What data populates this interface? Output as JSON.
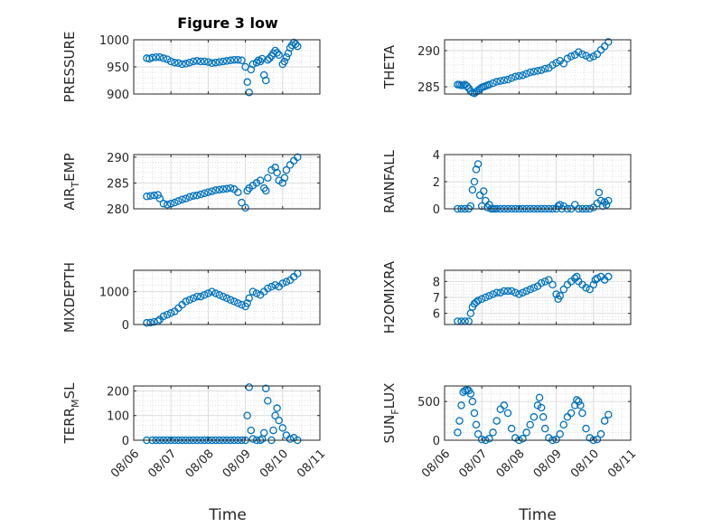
{
  "figure_title": "Figure 3 low",
  "x_axis_label": "Time",
  "x_tick_labels": [
    "08/06",
    "08/07",
    "08/08",
    "08/09",
    "08/10",
    "08/11"
  ],
  "colors": {
    "marker": "#0072BD",
    "axis": "#262626",
    "grid": "#d9d9d9"
  },
  "chart_data": [
    {
      "type": "scatter",
      "ylabel": "PRESSURE",
      "xlim": [
        0,
        5
      ],
      "ylim": [
        900,
        1000
      ],
      "yticks": [
        900,
        950,
        1000
      ],
      "title": "Figure 3 low",
      "x": [
        0.35,
        0.42,
        0.5,
        0.6,
        0.7,
        0.8,
        0.9,
        1.0,
        1.1,
        1.2,
        1.3,
        1.4,
        1.5,
        1.6,
        1.7,
        1.8,
        1.9,
        2.0,
        2.1,
        2.2,
        2.3,
        2.4,
        2.5,
        2.6,
        2.7,
        2.8,
        2.9,
        3.0,
        3.05,
        3.1,
        3.15,
        3.2,
        3.3,
        3.35,
        3.4,
        3.45,
        3.5,
        3.55,
        3.6,
        3.65,
        3.7,
        3.75,
        3.8,
        3.85,
        3.9,
        4.0,
        4.05,
        4.1,
        4.15,
        4.2,
        4.25,
        4.3,
        4.35,
        4.4
      ],
      "y": [
        966,
        965,
        967,
        968,
        968,
        966,
        964,
        960,
        958,
        957,
        955,
        956,
        958,
        960,
        961,
        960,
        960,
        959,
        957,
        958,
        959,
        960,
        961,
        962,
        963,
        963,
        962,
        950,
        922,
        903,
        945,
        955,
        958,
        962,
        960,
        965,
        935,
        925,
        963,
        966,
        970,
        975,
        980,
        976,
        972,
        955,
        960,
        968,
        975,
        985,
        990,
        995,
        992,
        988
      ]
    },
    {
      "type": "scatter",
      "ylabel": "THETA",
      "xlim": [
        0,
        5
      ],
      "ylim": [
        284,
        291.5
      ],
      "yticks": [
        285,
        290
      ],
      "x": [
        0.35,
        0.4,
        0.45,
        0.5,
        0.55,
        0.6,
        0.65,
        0.7,
        0.75,
        0.8,
        0.85,
        0.9,
        0.95,
        1.0,
        1.05,
        1.1,
        1.15,
        1.2,
        1.3,
        1.4,
        1.5,
        1.6,
        1.7,
        1.8,
        1.9,
        2.0,
        2.1,
        2.2,
        2.3,
        2.4,
        2.5,
        2.6,
        2.7,
        2.8,
        2.9,
        3.0,
        3.1,
        3.2,
        3.3,
        3.4,
        3.5,
        3.6,
        3.7,
        3.8,
        3.9,
        4.0,
        4.1,
        4.2,
        4.3,
        4.4
      ],
      "y": [
        285.3,
        285.3,
        285.2,
        285.2,
        285.3,
        285.1,
        284.8,
        284.4,
        284.2,
        284.1,
        284.3,
        284.5,
        284.7,
        284.9,
        285.0,
        285.1,
        285.2,
        285.3,
        285.5,
        285.7,
        285.8,
        285.9,
        286.0,
        286.2,
        286.4,
        286.5,
        286.6,
        286.8,
        287.0,
        287.1,
        287.2,
        287.3,
        287.5,
        287.6,
        288.0,
        288.3,
        288.6,
        288.2,
        288.9,
        289.2,
        289.4,
        289.8,
        289.5,
        289.3,
        289.0,
        289.2,
        289.5,
        290.1,
        290.6,
        291.2
      ]
    },
    {
      "type": "scatter",
      "ylabel": "AIR_TEMP",
      "ylabel_parts": {
        "main": "AIR",
        "sub": "T",
        "rest": "EMP"
      },
      "xlim": [
        0,
        5
      ],
      "ylim": [
        280,
        290.5
      ],
      "yticks": [
        280,
        285,
        290
      ],
      "x": [
        0.35,
        0.45,
        0.55,
        0.65,
        0.7,
        0.8,
        0.9,
        1.0,
        1.1,
        1.2,
        1.3,
        1.4,
        1.5,
        1.6,
        1.7,
        1.8,
        1.9,
        2.0,
        2.1,
        2.2,
        2.3,
        2.4,
        2.5,
        2.6,
        2.7,
        2.8,
        2.9,
        3.0,
        3.05,
        3.1,
        3.2,
        3.3,
        3.4,
        3.5,
        3.55,
        3.6,
        3.7,
        3.8,
        3.85,
        3.9,
        4.0,
        4.05,
        4.1,
        4.2,
        4.3,
        4.4
      ],
      "y": [
        282.4,
        282.5,
        282.6,
        282.7,
        282.0,
        281.0,
        280.8,
        281.0,
        281.2,
        281.5,
        281.8,
        282.0,
        282.3,
        282.5,
        282.6,
        282.8,
        283.0,
        283.2,
        283.4,
        283.6,
        283.7,
        283.8,
        283.9,
        284.0,
        283.8,
        283.2,
        281.2,
        280.2,
        283.5,
        284.0,
        284.5,
        285.0,
        285.5,
        284.0,
        283.5,
        286.0,
        287.5,
        288.0,
        287.0,
        285.5,
        285.0,
        286.0,
        287.5,
        288.5,
        289.3,
        290.0
      ]
    },
    {
      "type": "scatter",
      "ylabel": "RAINFALL",
      "xlim": [
        0,
        5
      ],
      "ylim": [
        0,
        4
      ],
      "yticks": [
        0,
        2,
        4
      ],
      "x": [
        0.35,
        0.45,
        0.55,
        0.65,
        0.7,
        0.75,
        0.8,
        0.85,
        0.9,
        0.95,
        1.0,
        1.05,
        1.1,
        1.15,
        1.2,
        1.25,
        1.3,
        1.35,
        1.4,
        1.5,
        1.6,
        1.7,
        1.8,
        1.9,
        2.0,
        2.1,
        2.2,
        2.3,
        2.4,
        2.5,
        2.6,
        2.7,
        2.8,
        2.9,
        3.0,
        3.05,
        3.1,
        3.15,
        3.2,
        3.3,
        3.4,
        3.5,
        3.6,
        3.7,
        3.8,
        3.9,
        4.0,
        4.1,
        4.15,
        4.2,
        4.25,
        4.3,
        4.35,
        4.4
      ],
      "y": [
        0,
        0,
        0,
        0,
        0.2,
        1.4,
        2.0,
        2.9,
        3.3,
        1.0,
        0.2,
        1.3,
        0.6,
        0.1,
        0.3,
        0,
        0,
        0,
        0,
        0,
        0,
        0,
        0,
        0,
        0,
        0,
        0,
        0,
        0,
        0,
        0,
        0,
        0,
        0,
        0,
        0.2,
        0.3,
        0,
        0.2,
        0,
        0,
        0.3,
        0,
        0,
        0,
        0,
        0.1,
        0.4,
        1.2,
        0.6,
        0.2,
        0.5,
        0.3,
        0.6
      ]
    },
    {
      "type": "scatter",
      "ylabel": "MIXDEPTH",
      "xlim": [
        0,
        5
      ],
      "ylim": [
        0,
        1650
      ],
      "yticks": [
        0,
        1000
      ],
      "x": [
        0.35,
        0.45,
        0.55,
        0.65,
        0.7,
        0.8,
        0.9,
        1.0,
        1.1,
        1.2,
        1.3,
        1.4,
        1.5,
        1.6,
        1.7,
        1.8,
        1.9,
        2.0,
        2.1,
        2.2,
        2.3,
        2.4,
        2.5,
        2.6,
        2.7,
        2.8,
        2.9,
        3.0,
        3.05,
        3.1,
        3.2,
        3.3,
        3.4,
        3.5,
        3.6,
        3.7,
        3.8,
        3.9,
        4.0,
        4.1,
        4.2,
        4.3,
        4.4
      ],
      "y": [
        50,
        60,
        80,
        100,
        150,
        250,
        300,
        350,
        400,
        500,
        600,
        700,
        750,
        800,
        850,
        850,
        900,
        950,
        1000,
        950,
        900,
        850,
        800,
        750,
        700,
        650,
        600,
        550,
        650,
        800,
        1000,
        950,
        900,
        1000,
        1100,
        1150,
        1200,
        1150,
        1250,
        1300,
        1350,
        1450,
        1550
      ]
    },
    {
      "type": "scatter",
      "ylabel": "H2OMIXRA",
      "xlim": [
        0,
        5
      ],
      "ylim": [
        5.3,
        8.7
      ],
      "yticks": [
        6,
        7,
        8
      ],
      "x": [
        0.35,
        0.45,
        0.55,
        0.65,
        0.7,
        0.75,
        0.8,
        0.85,
        0.9,
        1.0,
        1.1,
        1.2,
        1.3,
        1.4,
        1.5,
        1.6,
        1.7,
        1.8,
        1.9,
        2.0,
        2.1,
        2.2,
        2.3,
        2.4,
        2.5,
        2.6,
        2.7,
        2.8,
        2.9,
        3.0,
        3.05,
        3.1,
        3.2,
        3.3,
        3.4,
        3.5,
        3.55,
        3.6,
        3.7,
        3.8,
        3.9,
        4.0,
        4.05,
        4.1,
        4.2,
        4.3,
        4.4
      ],
      "y": [
        5.5,
        5.5,
        5.5,
        5.5,
        6.0,
        6.4,
        6.6,
        6.7,
        6.8,
        6.9,
        7.0,
        7.1,
        7.2,
        7.3,
        7.3,
        7.4,
        7.4,
        7.4,
        7.3,
        7.2,
        7.3,
        7.4,
        7.5,
        7.6,
        7.7,
        7.9,
        8.0,
        8.1,
        7.8,
        7.2,
        6.9,
        7.1,
        7.5,
        7.8,
        8.0,
        8.2,
        8.3,
        8.0,
        7.8,
        7.6,
        7.5,
        7.8,
        8.1,
        8.2,
        8.3,
        8.1,
        8.3
      ]
    },
    {
      "type": "scatter",
      "ylabel": "TERR_MSL",
      "ylabel_parts": {
        "main": "TERR",
        "sub": "M",
        "rest": "SL"
      },
      "xlim": [
        0,
        5
      ],
      "ylim": [
        0,
        220
      ],
      "yticks": [
        0,
        100,
        200
      ],
      "x": [
        0.35,
        0.5,
        0.6,
        0.7,
        0.8,
        0.9,
        1.0,
        1.1,
        1.2,
        1.3,
        1.4,
        1.5,
        1.6,
        1.7,
        1.8,
        1.9,
        2.0,
        2.1,
        2.2,
        2.3,
        2.4,
        2.5,
        2.6,
        2.7,
        2.8,
        2.9,
        3.0,
        3.05,
        3.1,
        3.15,
        3.2,
        3.3,
        3.4,
        3.45,
        3.5,
        3.55,
        3.6,
        3.7,
        3.75,
        3.8,
        3.85,
        3.9,
        4.0,
        4.1,
        4.2,
        4.3,
        4.4
      ],
      "y": [
        0,
        0,
        0,
        0,
        0,
        0,
        0,
        0,
        0,
        0,
        0,
        0,
        0,
        0,
        0,
        0,
        0,
        0,
        0,
        0,
        0,
        0,
        0,
        0,
        0,
        0,
        0,
        100,
        215,
        40,
        5,
        0,
        0,
        5,
        30,
        210,
        160,
        0,
        40,
        100,
        130,
        80,
        50,
        20,
        5,
        10,
        0
      ]
    },
    {
      "type": "scatter",
      "ylabel": "SUN_FLUX",
      "ylabel_parts": {
        "main": "SUN",
        "sub": "F",
        "rest": "LUX"
      },
      "xlim": [
        0,
        5
      ],
      "ylim": [
        0,
        700
      ],
      "yticks": [
        0,
        500
      ],
      "x": [
        0.35,
        0.4,
        0.45,
        0.5,
        0.55,
        0.6,
        0.65,
        0.7,
        0.75,
        0.8,
        0.85,
        0.9,
        1.0,
        1.1,
        1.2,
        1.3,
        1.4,
        1.5,
        1.6,
        1.7,
        1.8,
        1.9,
        2.0,
        2.1,
        2.2,
        2.3,
        2.4,
        2.5,
        2.55,
        2.6,
        2.65,
        2.7,
        2.8,
        2.9,
        3.0,
        3.1,
        3.2,
        3.3,
        3.4,
        3.5,
        3.55,
        3.6,
        3.65,
        3.7,
        3.8,
        3.9,
        4.0,
        4.1,
        4.2,
        4.3,
        4.4
      ],
      "y": [
        100,
        250,
        450,
        620,
        640,
        650,
        640,
        600,
        500,
        350,
        200,
        80,
        10,
        0,
        20,
        100,
        250,
        400,
        450,
        350,
        150,
        30,
        0,
        20,
        100,
        200,
        300,
        450,
        550,
        420,
        300,
        150,
        30,
        0,
        10,
        80,
        200,
        300,
        350,
        450,
        520,
        500,
        450,
        350,
        150,
        30,
        0,
        10,
        80,
        250,
        330
      ]
    }
  ]
}
